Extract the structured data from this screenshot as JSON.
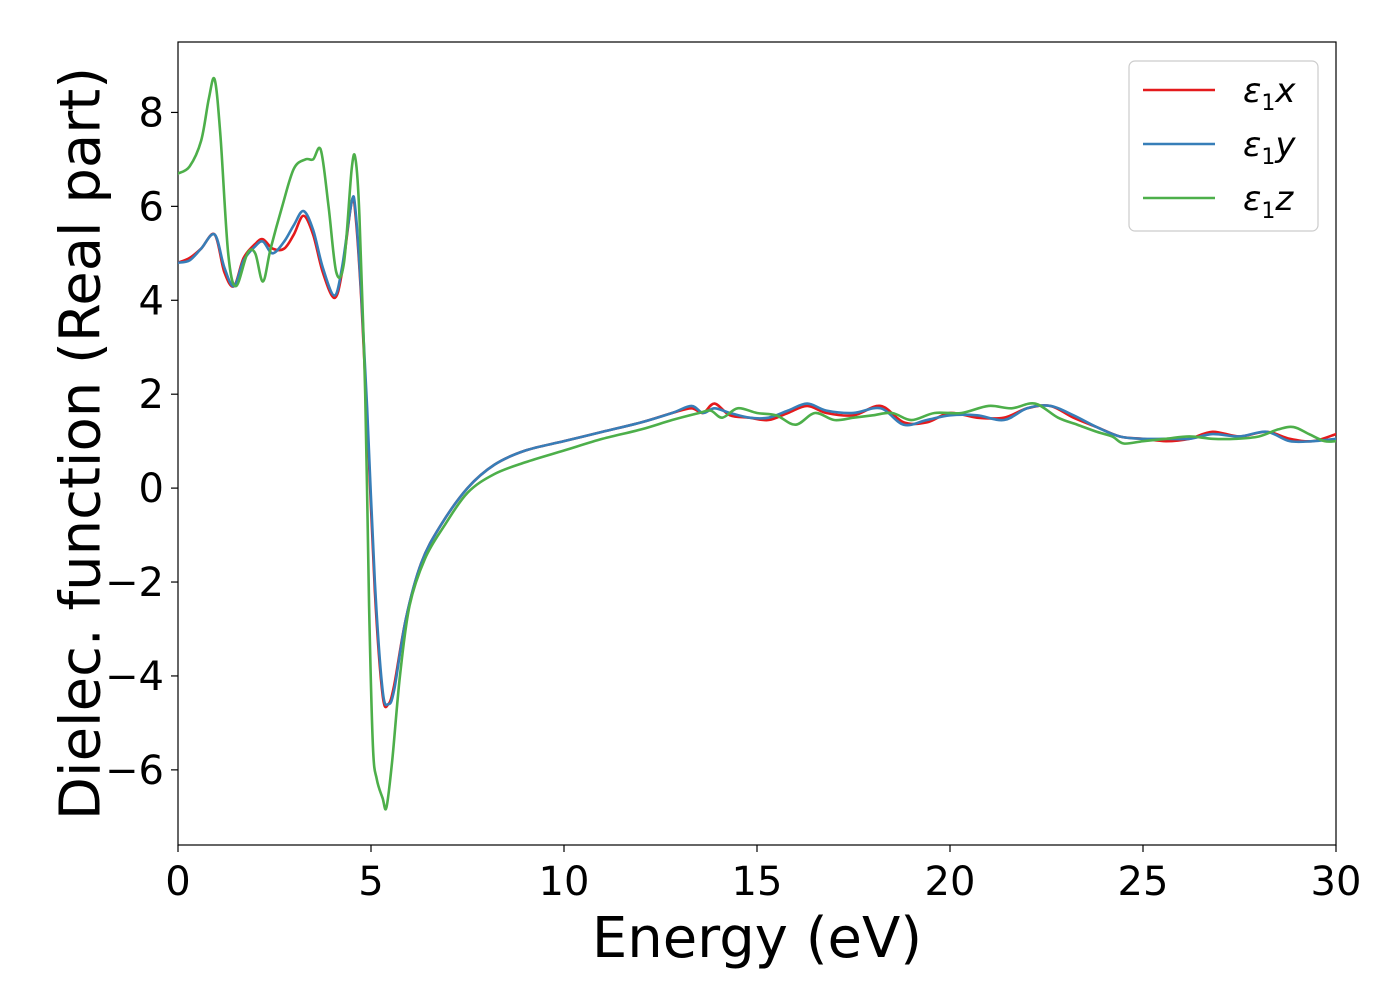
{
  "chart_data": {
    "type": "line",
    "xlabel": "Energy (eV)",
    "ylabel": "Dielec. function (Real part)",
    "xlim": [
      0,
      30
    ],
    "ylim": [
      -7.6,
      9.5
    ],
    "xticks": [
      0,
      5,
      10,
      15,
      20,
      25,
      30
    ],
    "xtick_labels": [
      "0",
      "5",
      "10",
      "15",
      "20",
      "25",
      "30"
    ],
    "yticks": [
      -6,
      -4,
      -2,
      0,
      2,
      4,
      6,
      8
    ],
    "ytick_labels": [
      "−6",
      "−4",
      "−2",
      "0",
      "2",
      "4",
      "6",
      "8"
    ],
    "grid": false,
    "legend_position": "top-right",
    "series": [
      {
        "name": "ε1x",
        "label_main": "ε",
        "label_sub": "1",
        "label_tail": "x",
        "color": "#e41a1c",
        "x": [
          0,
          0.3,
          0.6,
          0.95,
          1.2,
          1.45,
          1.7,
          2.0,
          2.2,
          2.45,
          2.75,
          3.0,
          3.25,
          3.5,
          3.75,
          4.05,
          4.25,
          4.5,
          4.6,
          4.75,
          4.9,
          5.1,
          5.3,
          5.45,
          5.6,
          5.9,
          6.3,
          6.8,
          7.5,
          8.2,
          9.0,
          10.0,
          11.0,
          12.0,
          12.8,
          13.3,
          13.6,
          13.9,
          14.3,
          14.8,
          15.3,
          15.8,
          16.3,
          16.8,
          17.5,
          18.2,
          18.8,
          19.4,
          20.0,
          20.7,
          21.4,
          22.0,
          22.6,
          23.2,
          23.8,
          24.4,
          25.0,
          25.6,
          26.2,
          26.8,
          27.5,
          28.2,
          28.8,
          29.4,
          30.0
        ],
        "y": [
          4.8,
          4.9,
          5.1,
          5.4,
          4.6,
          4.3,
          4.9,
          5.2,
          5.3,
          5.1,
          5.1,
          5.4,
          5.8,
          5.4,
          4.6,
          4.05,
          4.6,
          6.1,
          5.8,
          4.0,
          1.5,
          -2.2,
          -4.4,
          -4.6,
          -4.2,
          -2.8,
          -1.6,
          -0.8,
          0.0,
          0.5,
          0.8,
          1.0,
          1.2,
          1.4,
          1.6,
          1.7,
          1.6,
          1.8,
          1.55,
          1.5,
          1.45,
          1.6,
          1.75,
          1.6,
          1.55,
          1.75,
          1.4,
          1.4,
          1.6,
          1.5,
          1.5,
          1.7,
          1.75,
          1.5,
          1.3,
          1.1,
          1.05,
          1.0,
          1.05,
          1.2,
          1.1,
          1.2,
          1.05,
          1.0,
          1.15
        ]
      },
      {
        "name": "ε1y",
        "label_main": "ε",
        "label_sub": "1",
        "label_tail": "y",
        "color": "#377eb8",
        "x": [
          0,
          0.3,
          0.6,
          0.95,
          1.2,
          1.45,
          1.7,
          2.0,
          2.2,
          2.45,
          2.75,
          3.0,
          3.25,
          3.5,
          3.75,
          4.05,
          4.25,
          4.5,
          4.6,
          4.75,
          4.9,
          5.1,
          5.3,
          5.45,
          5.6,
          5.9,
          6.3,
          6.8,
          7.5,
          8.2,
          9.0,
          10.0,
          11.0,
          12.0,
          12.8,
          13.3,
          13.6,
          13.9,
          14.3,
          14.8,
          15.3,
          15.8,
          16.3,
          16.8,
          17.5,
          18.2,
          18.8,
          19.4,
          20.0,
          20.7,
          21.4,
          22.0,
          22.6,
          23.2,
          23.8,
          24.4,
          25.0,
          25.6,
          26.2,
          26.8,
          27.5,
          28.2,
          28.8,
          29.4,
          30.0
        ],
        "y": [
          4.8,
          4.85,
          5.1,
          5.4,
          4.7,
          4.3,
          4.85,
          5.15,
          5.25,
          5.0,
          5.25,
          5.6,
          5.9,
          5.5,
          4.7,
          4.1,
          4.7,
          6.1,
          5.9,
          4.1,
          1.7,
          -2.0,
          -4.3,
          -4.6,
          -4.3,
          -2.8,
          -1.6,
          -0.8,
          0.0,
          0.5,
          0.8,
          1.0,
          1.2,
          1.4,
          1.6,
          1.75,
          1.6,
          1.7,
          1.6,
          1.5,
          1.5,
          1.65,
          1.8,
          1.65,
          1.6,
          1.7,
          1.35,
          1.45,
          1.55,
          1.55,
          1.45,
          1.7,
          1.75,
          1.55,
          1.3,
          1.1,
          1.05,
          1.05,
          1.05,
          1.15,
          1.1,
          1.2,
          1.0,
          1.0,
          1.05
        ]
      },
      {
        "name": "ε1z",
        "label_main": "ε",
        "label_sub": "1",
        "label_tail": "z",
        "color": "#4daf4a",
        "x": [
          0,
          0.3,
          0.6,
          0.8,
          0.95,
          1.1,
          1.3,
          1.5,
          1.8,
          2.0,
          2.2,
          2.4,
          2.7,
          3.0,
          3.3,
          3.5,
          3.7,
          3.9,
          4.1,
          4.3,
          4.5,
          4.6,
          4.7,
          4.85,
          4.95,
          5.05,
          5.15,
          5.3,
          5.4,
          5.55,
          5.75,
          6.0,
          6.4,
          6.9,
          7.5,
          8.2,
          9.0,
          10.0,
          11.0,
          12.0,
          12.8,
          13.5,
          13.8,
          14.1,
          14.5,
          15.0,
          15.5,
          16.0,
          16.5,
          17.0,
          17.5,
          18.0,
          18.5,
          19.0,
          19.6,
          20.3,
          21.0,
          21.6,
          22.2,
          22.8,
          23.3,
          23.8,
          24.2,
          24.5,
          25.0,
          25.6,
          26.2,
          26.8,
          27.4,
          28.0,
          28.5,
          28.9,
          29.3,
          29.7,
          30.0
        ],
        "y": [
          6.7,
          6.85,
          7.4,
          8.3,
          8.7,
          7.5,
          5.0,
          4.3,
          5.0,
          5.0,
          4.4,
          5.1,
          6.0,
          6.8,
          7.0,
          7.0,
          7.2,
          6.0,
          4.6,
          4.8,
          6.8,
          7.0,
          5.8,
          2.0,
          -2.5,
          -5.5,
          -6.2,
          -6.6,
          -6.8,
          -5.8,
          -4.0,
          -2.5,
          -1.5,
          -0.8,
          -0.1,
          0.3,
          0.55,
          0.8,
          1.05,
          1.25,
          1.45,
          1.6,
          1.65,
          1.5,
          1.7,
          1.6,
          1.55,
          1.35,
          1.6,
          1.45,
          1.5,
          1.55,
          1.6,
          1.45,
          1.6,
          1.6,
          1.75,
          1.7,
          1.8,
          1.5,
          1.35,
          1.2,
          1.1,
          0.95,
          1.0,
          1.05,
          1.1,
          1.05,
          1.05,
          1.1,
          1.25,
          1.3,
          1.15,
          1.0,
          1.0
        ]
      }
    ]
  }
}
